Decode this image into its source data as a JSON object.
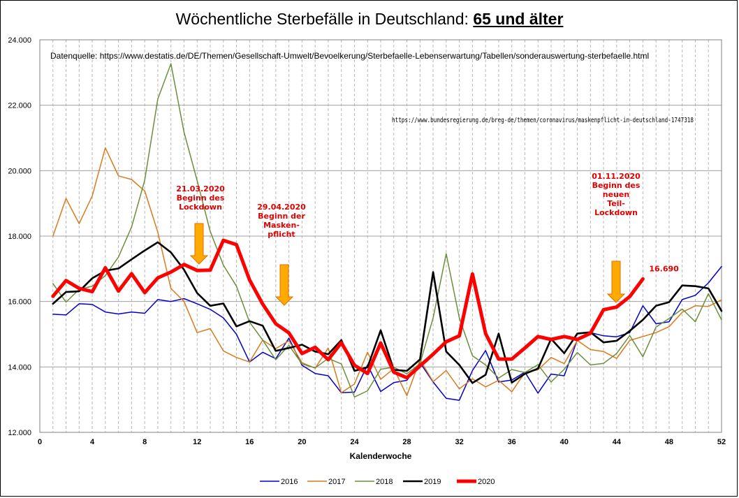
{
  "title": {
    "main": "Wöchentliche Sterbefälle in Deutschland:",
    "highlight": "65 und älter"
  },
  "source_destatis": "Datenquelle: https://www.destatis.de/DE/Themen/Gesellschaft-Umwelt/Bevoelkerung/Sterbefaelle-Lebenserwartung/Tabellen/sonderauswertung-sterbefaelle.html",
  "source_bundesregierung": "https://www.bundesregierung.de/breg-de/themen/coronavirus/maskenpflicht-in-deutschland-1747318",
  "colors": {
    "2016": "#0000cc",
    "2017": "#d97a1c",
    "2018": "#6b8e3a",
    "2019": "#000000",
    "2020": "#ff0000",
    "arrow_fill": "#ffaa00",
    "arrow_stroke": "#e07000",
    "annotation": "#e00000",
    "grid": "#a0a0a0"
  },
  "chart_data": {
    "type": "line",
    "title": "Wöchentliche Sterbefälle in Deutschland: 65 und älter",
    "xlabel": "Kalenderwoche",
    "ylabel": "",
    "xlim": [
      0,
      52
    ],
    "ylim": [
      12000,
      24000
    ],
    "x_ticks": [
      0,
      4,
      8,
      12,
      16,
      20,
      24,
      28,
      32,
      36,
      40,
      44,
      48,
      52
    ],
    "y_ticks": [
      12000,
      14000,
      16000,
      18000,
      20000,
      22000,
      24000
    ],
    "y_tick_labels": [
      "12.000",
      "14.000",
      "16.000",
      "18.000",
      "20.000",
      "22.000",
      "24.000"
    ],
    "grid": "horizontal solid, vertical dashed every week",
    "legend_position": "bottom",
    "series": [
      {
        "name": "2016",
        "x": [
          1,
          2,
          3,
          4,
          5,
          6,
          7,
          8,
          9,
          10,
          11,
          12,
          13,
          14,
          15,
          16,
          17,
          18,
          19,
          20,
          21,
          22,
          23,
          24,
          25,
          26,
          27,
          28,
          29,
          30,
          31,
          32,
          33,
          34,
          35,
          36,
          37,
          38,
          39,
          40,
          41,
          42,
          43,
          44,
          45,
          46,
          47,
          48,
          49,
          50,
          51,
          52
        ],
        "values": [
          15610,
          15590,
          15930,
          15910,
          15680,
          15620,
          15680,
          15640,
          16060,
          16000,
          16090,
          15930,
          15760,
          15500,
          15000,
          14150,
          14450,
          14250,
          14880,
          14050,
          13800,
          13730,
          13210,
          13230,
          14060,
          13250,
          13520,
          13590,
          14130,
          13540,
          13040,
          12980,
          13890,
          14500,
          13540,
          13600,
          13840,
          13200,
          13780,
          13730,
          14830,
          15050,
          14950,
          14920,
          15050,
          15870,
          15320,
          15380,
          16060,
          16190,
          16570,
          17070
        ]
      },
      {
        "name": "2017",
        "x": [
          1,
          2,
          3,
          4,
          5,
          6,
          7,
          8,
          9,
          10,
          11,
          12,
          13,
          14,
          15,
          16,
          17,
          18,
          19,
          20,
          21,
          22,
          23,
          24,
          25,
          26,
          27,
          28,
          29,
          30,
          31,
          32,
          33,
          34,
          35,
          36,
          37,
          38,
          39,
          40,
          41,
          42,
          43,
          44,
          45,
          46,
          47,
          48,
          49,
          50,
          51,
          52
        ],
        "values": [
          18000,
          19150,
          18380,
          19230,
          20700,
          19840,
          19730,
          19380,
          18120,
          16400,
          16000,
          15050,
          15170,
          14490,
          14290,
          14150,
          14820,
          14560,
          14800,
          14130,
          13960,
          14580,
          13210,
          13480,
          14450,
          13620,
          13950,
          13120,
          14220,
          13550,
          13890,
          13330,
          13640,
          13390,
          13590,
          13240,
          13830,
          13910,
          14290,
          14100,
          14810,
          14530,
          14470,
          14260,
          14810,
          14930,
          15050,
          15230,
          15670,
          15870,
          15850,
          16050
        ]
      },
      {
        "name": "2018",
        "x": [
          1,
          2,
          3,
          4,
          5,
          6,
          7,
          8,
          9,
          10,
          11,
          12,
          13,
          14,
          15,
          16,
          17,
          18,
          19,
          20,
          21,
          22,
          23,
          24,
          25,
          26,
          27,
          28,
          29,
          30,
          31,
          32,
          33,
          34,
          35,
          36,
          37,
          38,
          39,
          40,
          41,
          42,
          43,
          44,
          45,
          46,
          47,
          48,
          49,
          50,
          51,
          52
        ],
        "values": [
          16550,
          15980,
          16370,
          16470,
          16790,
          17360,
          18280,
          19710,
          22190,
          23270,
          21170,
          19700,
          18140,
          17110,
          16470,
          15370,
          14820,
          14220,
          14660,
          14090,
          13970,
          14260,
          14090,
          13080,
          13270,
          13930,
          13990,
          13790,
          14100,
          15500,
          17460,
          15500,
          14340,
          14060,
          13660,
          13920,
          13830,
          14070,
          13540,
          13930,
          14440,
          14060,
          14110,
          14410,
          14960,
          14310,
          15220,
          15480,
          15770,
          15380,
          16240,
          15440
        ]
      },
      {
        "name": "2019",
        "x": [
          1,
          2,
          3,
          4,
          5,
          6,
          7,
          8,
          9,
          10,
          11,
          12,
          13,
          14,
          15,
          16,
          17,
          18,
          19,
          20,
          21,
          22,
          23,
          24,
          25,
          26,
          27,
          28,
          29,
          30,
          31,
          32,
          33,
          34,
          35,
          36,
          37,
          38,
          39,
          40,
          41,
          42,
          43,
          44,
          45,
          46,
          47,
          48,
          49,
          50,
          51,
          52
        ],
        "values": [
          15930,
          16290,
          16310,
          16710,
          16940,
          17010,
          17290,
          17560,
          17810,
          17500,
          16970,
          16260,
          15870,
          15940,
          15240,
          15400,
          15260,
          14490,
          14580,
          14680,
          14470,
          14390,
          14820,
          13880,
          13990,
          15120,
          13910,
          13880,
          14230,
          16900,
          14470,
          14060,
          13510,
          13760,
          15020,
          13520,
          13790,
          13950,
          14860,
          14420,
          15020,
          15060,
          14750,
          14800,
          15100,
          15440,
          15870,
          15980,
          16490,
          16470,
          16400,
          15710
        ]
      },
      {
        "name": "2020",
        "x": [
          1,
          2,
          3,
          4,
          5,
          6,
          7,
          8,
          9,
          10,
          11,
          12,
          13,
          14,
          15,
          16,
          17,
          18,
          19,
          20,
          21,
          22,
          23,
          24,
          25,
          26,
          27,
          28,
          29,
          30,
          31,
          32,
          33,
          34,
          35,
          36,
          37,
          38,
          39,
          40,
          41,
          42,
          43,
          44,
          45,
          46
        ],
        "values": [
          16160,
          16640,
          16400,
          16300,
          17030,
          16320,
          16850,
          16270,
          16720,
          16900,
          17130,
          16950,
          16960,
          17870,
          17740,
          16660,
          15920,
          15320,
          15040,
          14410,
          14600,
          14220,
          14740,
          14050,
          13800,
          14730,
          13840,
          13670,
          14030,
          14390,
          14770,
          14950,
          16840,
          15020,
          14240,
          14240,
          14580,
          14930,
          14840,
          14930,
          14840,
          15030,
          15750,
          15830,
          16150,
          16690
        ]
      }
    ],
    "annotations": [
      {
        "text": "16.690",
        "x": 46,
        "y": 16690
      },
      {
        "lines": [
          "21.03.2020",
          "Beginn des",
          "Lockdown"
        ],
        "week": 12
      },
      {
        "lines": [
          "29.04.2020",
          "Beginn der",
          "Masken-",
          "pflicht"
        ],
        "week": 18.5
      },
      {
        "lines": [
          "01.11.2020",
          "Beginn des",
          "neuen",
          "Teil-",
          "Lockdown"
        ],
        "week": 44
      }
    ]
  }
}
